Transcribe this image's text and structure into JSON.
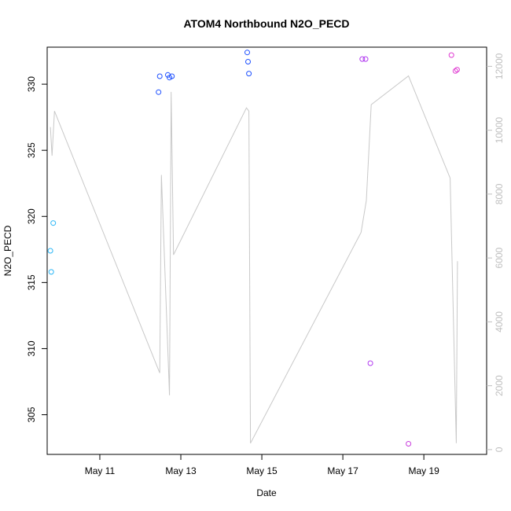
{
  "chart_data": {
    "type": "scatter",
    "title": "ATOM4 Northbound N2O_PECD",
    "xlabel": "Date",
    "ylabel": "N2O_PECD",
    "x_ticks": [
      "May 11",
      "May 13",
      "May 15",
      "May 17",
      "May 19"
    ],
    "x_tick_days": [
      11,
      13,
      15,
      17,
      19
    ],
    "xlim_days": [
      9.7,
      20.55
    ],
    "y_ticks": [
      305,
      310,
      315,
      320,
      325,
      330
    ],
    "ylim": [
      302,
      332.8
    ],
    "y2_ticks": [
      0,
      2000,
      4000,
      6000,
      8000,
      10000,
      12000
    ],
    "y2lim": [
      -150,
      12600
    ],
    "y2_color": "#bfbfbf",
    "points": [
      {
        "day": 9.78,
        "value": 317.4,
        "color": "#29b6f6"
      },
      {
        "day": 9.8,
        "value": 315.8,
        "color": "#29b6f6"
      },
      {
        "day": 9.85,
        "value": 319.5,
        "color": "#29b6f6"
      },
      {
        "day": 12.45,
        "value": 329.4,
        "color": "#1e50ff"
      },
      {
        "day": 12.48,
        "value": 330.6,
        "color": "#1e50ff"
      },
      {
        "day": 12.68,
        "value": 330.7,
        "color": "#1e50ff"
      },
      {
        "day": 12.72,
        "value": 330.5,
        "color": "#1e50ff"
      },
      {
        "day": 12.78,
        "value": 330.6,
        "color": "#1e50ff"
      },
      {
        "day": 14.64,
        "value": 332.4,
        "color": "#1e50ff"
      },
      {
        "day": 14.66,
        "value": 331.7,
        "color": "#1e50ff"
      },
      {
        "day": 14.68,
        "value": 330.8,
        "color": "#1e50ff"
      },
      {
        "day": 17.48,
        "value": 331.9,
        "color": "#b23cf0"
      },
      {
        "day": 17.56,
        "value": 331.9,
        "color": "#b23cf0"
      },
      {
        "day": 17.68,
        "value": 308.9,
        "color": "#b23cf0"
      },
      {
        "day": 18.62,
        "value": 302.8,
        "color": "#c83cdc"
      },
      {
        "day": 19.68,
        "value": 332.2,
        "color": "#e03cd2"
      },
      {
        "day": 19.78,
        "value": 331.0,
        "color": "#e03cd2"
      },
      {
        "day": 19.82,
        "value": 331.1,
        "color": "#e03cd2"
      }
    ],
    "altitude_series": [
      {
        "day": 9.78,
        "alt": 10100
      },
      {
        "day": 9.82,
        "alt": 9200
      },
      {
        "day": 9.88,
        "alt": 10600
      },
      {
        "day": 12.48,
        "alt": 2400
      },
      {
        "day": 12.52,
        "alt": 8600
      },
      {
        "day": 12.72,
        "alt": 1700
      },
      {
        "day": 12.76,
        "alt": 11200
      },
      {
        "day": 12.82,
        "alt": 6100
      },
      {
        "day": 14.62,
        "alt": 10700
      },
      {
        "day": 14.68,
        "alt": 10600
      },
      {
        "day": 14.72,
        "alt": 200
      },
      {
        "day": 17.45,
        "alt": 6800
      },
      {
        "day": 17.58,
        "alt": 7800
      },
      {
        "day": 17.7,
        "alt": 10800
      },
      {
        "day": 18.62,
        "alt": 11700
      },
      {
        "day": 19.65,
        "alt": 8500
      },
      {
        "day": 19.8,
        "alt": 200
      },
      {
        "day": 19.83,
        "alt": 5900
      }
    ]
  }
}
